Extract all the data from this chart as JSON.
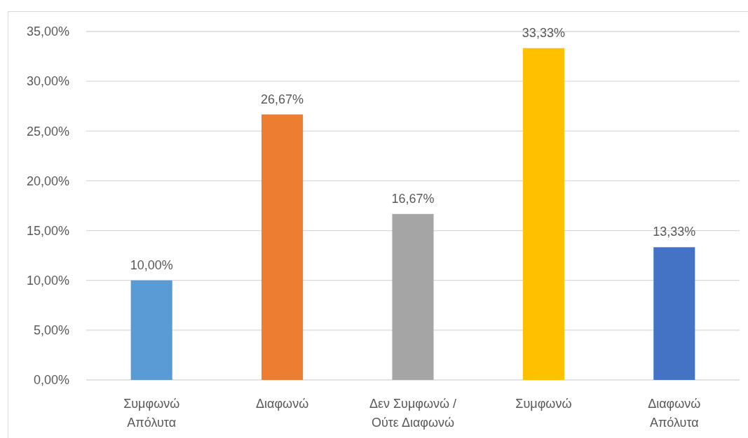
{
  "chart_data": {
    "type": "bar",
    "categories": [
      "Συμφωνώ Απόλυτα",
      "Διαφωνώ",
      "Δεν Συμφωνώ / Ούτε Διαφωνώ",
      "Συμφωνώ",
      "Διαφωνώ Απόλυτα"
    ],
    "values": [
      10,
      26.67,
      16.67,
      33.33,
      13.33
    ],
    "colors": [
      "#5b9bd5",
      "#ed7d31",
      "#a5a5a5",
      "#ffc000",
      "#4472c4"
    ],
    "value_labels": [
      "10,00%",
      "26,67%",
      "16,67%",
      "33,33%",
      "13,33%"
    ],
    "ylim": [
      0,
      35
    ],
    "yticks": [
      {
        "value": 0,
        "label": "0,00%"
      },
      {
        "value": 5,
        "label": "5,00%"
      },
      {
        "value": 10,
        "label": "10,00%"
      },
      {
        "value": 15,
        "label": "15,00%"
      },
      {
        "value": 20,
        "label": "20,00%"
      },
      {
        "value": 25,
        "label": "25,00%"
      },
      {
        "value": 30,
        "label": "30,00%"
      },
      {
        "value": 35,
        "label": "35,00%"
      }
    ],
    "grid": "y"
  }
}
